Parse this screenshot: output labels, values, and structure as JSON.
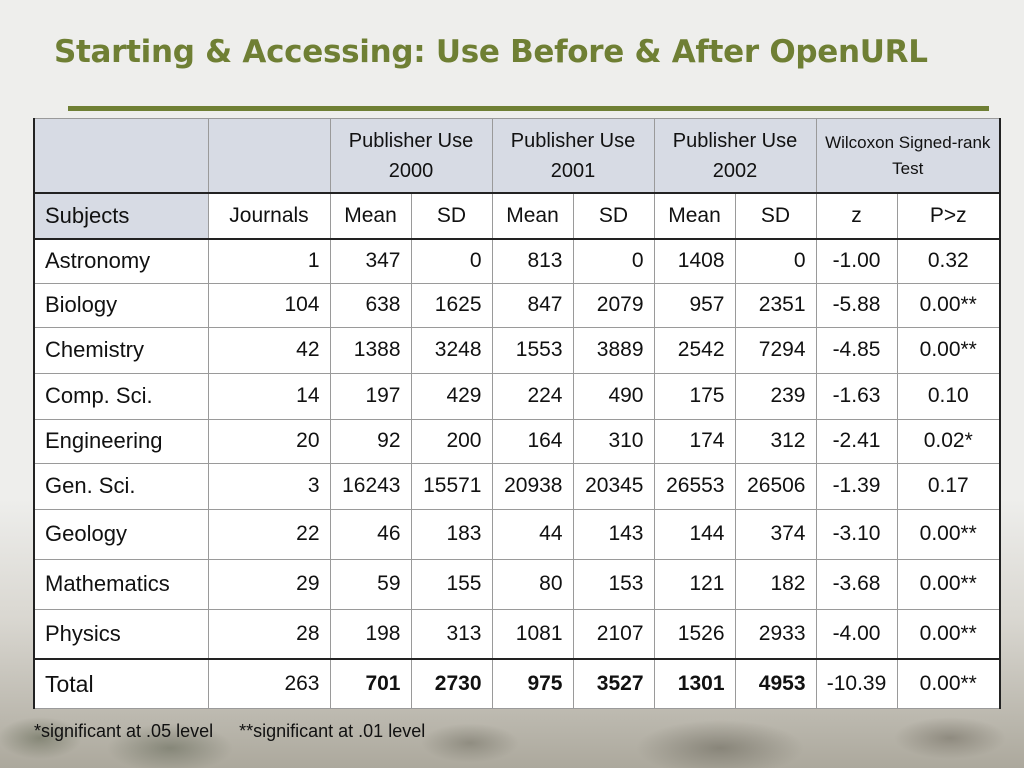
{
  "title": "Starting & Accessing:  Use Before & After OpenURL",
  "group_headers": [
    "Publisher Use 2000",
    "Publisher Use 2001",
    "Publisher Use 2002",
    "Wilcoxon Signed-rank Test"
  ],
  "sub_headers": [
    "Subjects",
    "Journals",
    "Mean",
    "SD",
    "Mean",
    "SD",
    "Mean",
    "SD",
    "z",
    "P>z"
  ],
  "rows": [
    {
      "subject": "Astronomy",
      "journals": "1",
      "m2000": "347",
      "sd2000": "0",
      "m2001": "813",
      "sd2001": "0",
      "m2002": "1408",
      "sd2002": "0",
      "z": "-1.00",
      "p": "0.32",
      "p_bold": true
    },
    {
      "subject": "Biology",
      "journals": "104",
      "m2000": "638",
      "sd2000": "1625",
      "m2001": "847",
      "sd2001": "2079",
      "m2002": "957",
      "sd2002": "2351",
      "z": "-5.88",
      "p": "0.00**",
      "p_bold": false
    },
    {
      "subject": "Chemistry",
      "journals": "42",
      "m2000": "1388",
      "sd2000": "3248",
      "m2001": "1553",
      "sd2001": "3889",
      "m2002": "2542",
      "sd2002": "7294",
      "z": "-4.85",
      "p": "0.00**",
      "p_bold": false
    },
    {
      "subject": "Comp. Sci.",
      "journals": "14",
      "m2000": "197",
      "sd2000": "429",
      "m2001": "224",
      "sd2001": "490",
      "m2002": "175",
      "sd2002": "239",
      "z": "-1.63",
      "p": "0.10",
      "p_bold": true
    },
    {
      "subject": "Engineering",
      "journals": "20",
      "m2000": "92",
      "sd2000": "200",
      "m2001": "164",
      "sd2001": "310",
      "m2002": "174",
      "sd2002": "312",
      "z": "-2.41",
      "p": "0.02*",
      "p_bold": false
    },
    {
      "subject": "Gen. Sci.",
      "journals": "3",
      "m2000": "16243",
      "sd2000": "15571",
      "m2001": "20938",
      "sd2001": "20345",
      "m2002": "26553",
      "sd2002": "26506",
      "z": "-1.39",
      "p": "0.17",
      "p_bold": true
    },
    {
      "subject": "Geology",
      "journals": "22",
      "m2000": "46",
      "sd2000": "183",
      "m2001": "44",
      "sd2001": "143",
      "m2002": "144",
      "sd2002": "374",
      "z": "-3.10",
      "p": "0.00**",
      "p_bold": false
    },
    {
      "subject": "Mathematics",
      "journals": "29",
      "m2000": "59",
      "sd2000": "155",
      "m2001": "80",
      "sd2001": "153",
      "m2002": "121",
      "sd2002": "182",
      "z": "-3.68",
      "p": "0.00**",
      "p_bold": false
    },
    {
      "subject": "Physics",
      "journals": "28",
      "m2000": "198",
      "sd2000": "313",
      "m2001": "1081",
      "sd2001": "2107",
      "m2002": "1526",
      "sd2002": "2933",
      "z": "-4.00",
      "p": "0.00**",
      "p_bold": false
    }
  ],
  "total": {
    "subject": "Total",
    "journals": "263",
    "m2000": "701",
    "sd2000": "2730",
    "m2001": "975",
    "sd2001": "3527",
    "m2002": "1301",
    "sd2002": "4953",
    "z": "-10.39",
    "p": "0.00**"
  },
  "footnotes": [
    "*significant at .05 level",
    "**significant at .01 level"
  ],
  "colors": {
    "title": "#6f7f34",
    "header_bg": "#d7dbe4",
    "background": "#eeeeec"
  }
}
